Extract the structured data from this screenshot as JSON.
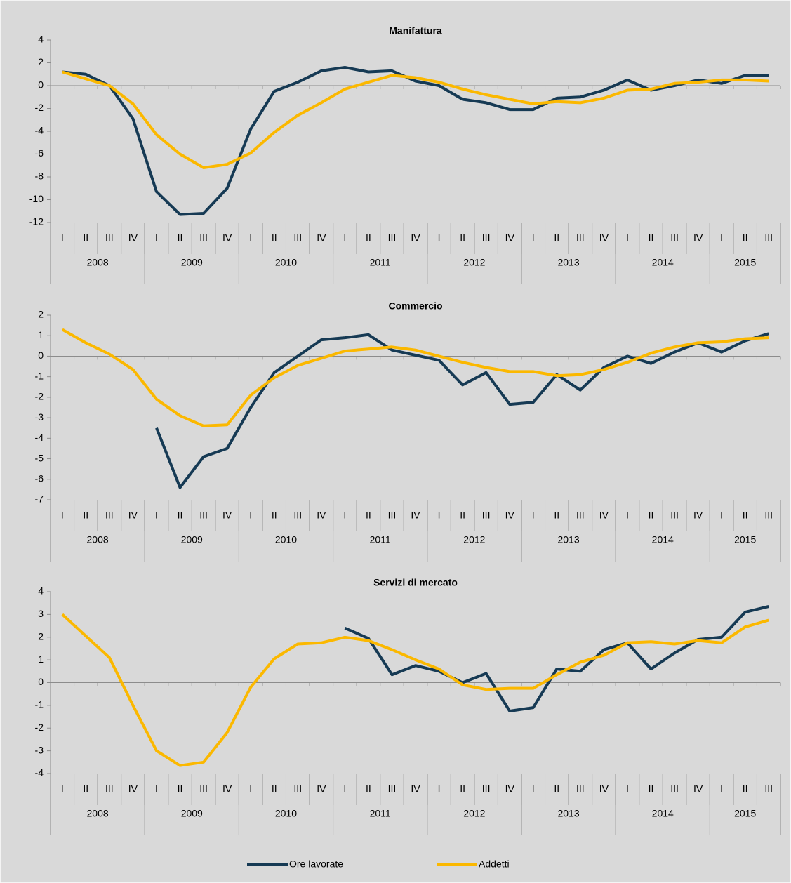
{
  "chart_data": [
    {
      "type": "line",
      "title": "Manifattura",
      "categories": [
        "I",
        "II",
        "III",
        "IV",
        "I",
        "II",
        "III",
        "IV",
        "I",
        "II",
        "III",
        "IV",
        "I",
        "II",
        "III",
        "IV",
        "I",
        "II",
        "III",
        "IV",
        "I",
        "II",
        "III",
        "IV",
        "I",
        "II",
        "III",
        "IV",
        "I",
        "II",
        "III"
      ],
      "category_groups": [
        "2008",
        "2009",
        "2010",
        "2011",
        "2012",
        "2013",
        "2014",
        "2015"
      ],
      "ylim": [
        -12,
        4
      ],
      "yticks": [
        -12,
        -10,
        -8,
        -6,
        -4,
        -2,
        0,
        2,
        4
      ],
      "series": [
        {
          "name": "Ore lavorate",
          "color": "#163a54",
          "values": [
            1.2,
            1.0,
            0.0,
            -2.9,
            -9.3,
            -11.3,
            -11.2,
            -9.0,
            -3.8,
            -0.5,
            0.3,
            1.3,
            1.6,
            1.2,
            1.3,
            0.4,
            0.0,
            -1.2,
            -1.5,
            -2.1,
            -2.1,
            -1.1,
            -1.0,
            -0.4,
            0.5,
            -0.4,
            0.0,
            0.5,
            0.2,
            0.9,
            0.9
          ]
        },
        {
          "name": "Addetti",
          "color": "#fbb800",
          "values": [
            1.2,
            0.6,
            0.0,
            -1.6,
            -4.3,
            -6.0,
            -7.2,
            -6.9,
            -5.9,
            -4.1,
            -2.6,
            -1.5,
            -0.3,
            0.3,
            0.9,
            0.7,
            0.3,
            -0.3,
            -0.8,
            -1.2,
            -1.6,
            -1.4,
            -1.5,
            -1.1,
            -0.4,
            -0.3,
            0.2,
            0.3,
            0.5,
            0.5,
            0.4
          ]
        }
      ]
    },
    {
      "type": "line",
      "title": "Commercio",
      "categories": [
        "I",
        "II",
        "III",
        "IV",
        "I",
        "II",
        "III",
        "IV",
        "I",
        "II",
        "III",
        "IV",
        "I",
        "II",
        "III",
        "IV",
        "I",
        "II",
        "III",
        "IV",
        "I",
        "II",
        "III",
        "IV",
        "I",
        "II",
        "III",
        "IV",
        "I",
        "II",
        "III"
      ],
      "category_groups": [
        "2008",
        "2009",
        "2010",
        "2011",
        "2012",
        "2013",
        "2014",
        "2015"
      ],
      "ylim": [
        -7,
        2
      ],
      "yticks": [
        -7,
        -6,
        -5,
        -4,
        -3,
        -2,
        -1,
        0,
        1,
        2
      ],
      "series": [
        {
          "name": "Ore lavorate",
          "color": "#163a54",
          "values": [
            null,
            null,
            null,
            null,
            -3.5,
            -6.4,
            -4.9,
            -4.5,
            -2.5,
            -0.8,
            0.0,
            0.8,
            0.9,
            1.05,
            0.3,
            0.05,
            -0.2,
            -1.4,
            -0.8,
            -2.35,
            -2.25,
            -0.9,
            -1.65,
            -0.55,
            0.0,
            -0.35,
            0.2,
            0.65,
            0.2,
            0.75,
            1.1
          ]
        },
        {
          "name": "Addetti",
          "color": "#fbb800",
          "values": [
            1.3,
            0.65,
            0.1,
            -0.65,
            -2.1,
            -2.9,
            -3.4,
            -3.35,
            -1.9,
            -1.05,
            -0.45,
            -0.1,
            0.25,
            0.35,
            0.45,
            0.3,
            0.0,
            -0.3,
            -0.55,
            -0.75,
            -0.75,
            -0.95,
            -0.9,
            -0.65,
            -0.3,
            0.15,
            0.45,
            0.65,
            0.7,
            0.85,
            0.9
          ]
        }
      ]
    },
    {
      "type": "line",
      "title": "Servizi di mercato",
      "categories": [
        "I",
        "II",
        "III",
        "IV",
        "I",
        "II",
        "III",
        "IV",
        "I",
        "II",
        "III",
        "IV",
        "I",
        "II",
        "III",
        "IV",
        "I",
        "II",
        "III",
        "IV",
        "I",
        "II",
        "III",
        "IV",
        "I",
        "II",
        "III",
        "IV",
        "I",
        "II",
        "III"
      ],
      "category_groups": [
        "2008",
        "2009",
        "2010",
        "2011",
        "2012",
        "2013",
        "2014",
        "2015"
      ],
      "ylim": [
        -4,
        4
      ],
      "yticks": [
        -4,
        -3,
        -2,
        -1,
        0,
        1,
        2,
        3,
        4
      ],
      "series": [
        {
          "name": "Ore lavorate",
          "color": "#163a54",
          "values": [
            null,
            null,
            null,
            null,
            null,
            null,
            null,
            null,
            null,
            null,
            null,
            null,
            2.4,
            1.95,
            0.35,
            0.75,
            0.5,
            0.0,
            0.4,
            -1.25,
            -1.1,
            0.6,
            0.5,
            1.45,
            1.75,
            0.6,
            1.3,
            1.9,
            2.0,
            3.1,
            3.35
          ]
        },
        {
          "name": "Addetti",
          "color": "#fbb800",
          "values": [
            3.0,
            2.05,
            1.1,
            -1.0,
            -3.0,
            -3.65,
            -3.5,
            -2.2,
            -0.2,
            1.05,
            1.7,
            1.75,
            2.0,
            1.85,
            1.45,
            1.0,
            0.6,
            -0.1,
            -0.3,
            -0.25,
            -0.25,
            0.35,
            0.9,
            1.2,
            1.75,
            1.8,
            1.7,
            1.85,
            1.75,
            2.45,
            2.75
          ]
        }
      ]
    }
  ]
}
